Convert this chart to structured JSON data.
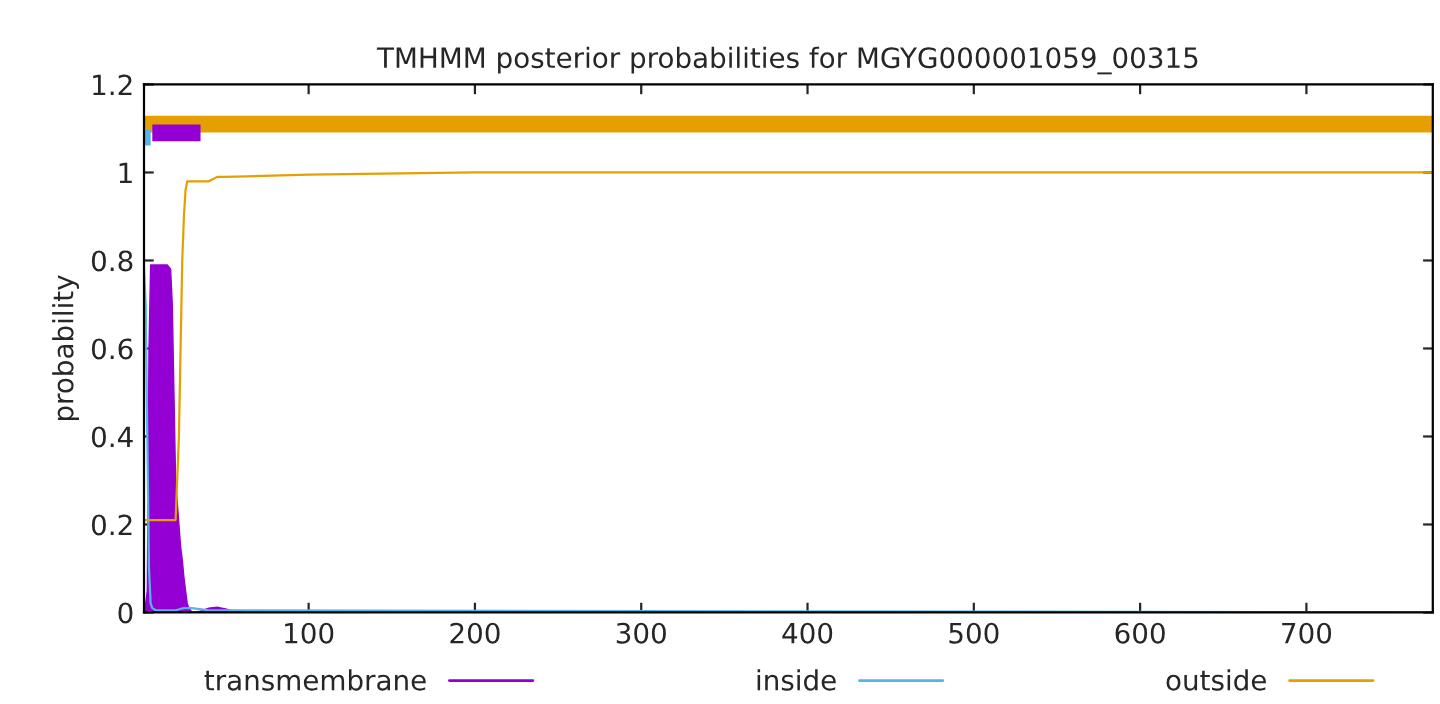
{
  "chart_data": {
    "type": "line",
    "title": "TMHMM posterior probabilities for MGYG000001059_00315",
    "ylabel": "probability",
    "xlim": [
      1,
      776
    ],
    "xticks": [
      100,
      200,
      300,
      400,
      500,
      600,
      700
    ],
    "ylim": [
      0,
      1.2
    ],
    "yticks": [
      0,
      0.2,
      0.4,
      0.6,
      0.8,
      1,
      1.2
    ],
    "grid": false,
    "legend": "bottom",
    "series": [
      {
        "name": "transmembrane",
        "color": "#9400d3",
        "type": "area",
        "x": [
          1,
          2,
          3,
          4,
          5,
          6,
          8,
          10,
          12,
          15,
          17,
          18,
          19,
          20,
          21,
          22,
          23,
          24,
          25,
          26,
          27,
          28,
          30,
          35,
          40,
          45,
          50,
          55,
          60,
          80,
          200,
          776
        ],
        "values": [
          0,
          0.02,
          0.05,
          0.6,
          0.79,
          0.79,
          0.79,
          0.79,
          0.79,
          0.79,
          0.78,
          0.7,
          0.5,
          0.3,
          0.25,
          0.2,
          0.15,
          0.12,
          0.08,
          0.05,
          0.02,
          0.01,
          0,
          0.003,
          0.01,
          0.012,
          0.008,
          0.003,
          0.001,
          0,
          0,
          0
        ]
      },
      {
        "name": "inside",
        "color": "#56b4e9",
        "x": [
          1,
          2,
          3,
          4,
          5,
          6,
          8,
          20,
          25,
          30,
          40,
          776
        ],
        "values": [
          0.78,
          0.7,
          0.4,
          0.1,
          0.02,
          0.01,
          0.005,
          0.005,
          0.01,
          0.01,
          0.005,
          0
        ]
      },
      {
        "name": "outside",
        "color": "#e69f00",
        "x": [
          1,
          5,
          10,
          20,
          22,
          23,
          24,
          25,
          26,
          27,
          30,
          40,
          45,
          50,
          100,
          200,
          776
        ],
        "values": [
          0.21,
          0.21,
          0.21,
          0.21,
          0.4,
          0.6,
          0.8,
          0.9,
          0.96,
          0.98,
          0.98,
          0.98,
          0.99,
          0.99,
          0.995,
          1,
          1
        ]
      },
      {
        "color": "#e69f00",
        "x": [
          1,
          776
        ],
        "values": [
          1.11,
          1.11
        ]
      },
      {
        "color": "#56b4e9",
        "x": [
          1,
          5
        ],
        "values": [
          1.08,
          1.08
        ]
      },
      {
        "color": "#9400d3",
        "x": [
          6,
          35
        ],
        "values": [
          1.09,
          1.09
        ]
      }
    ]
  }
}
